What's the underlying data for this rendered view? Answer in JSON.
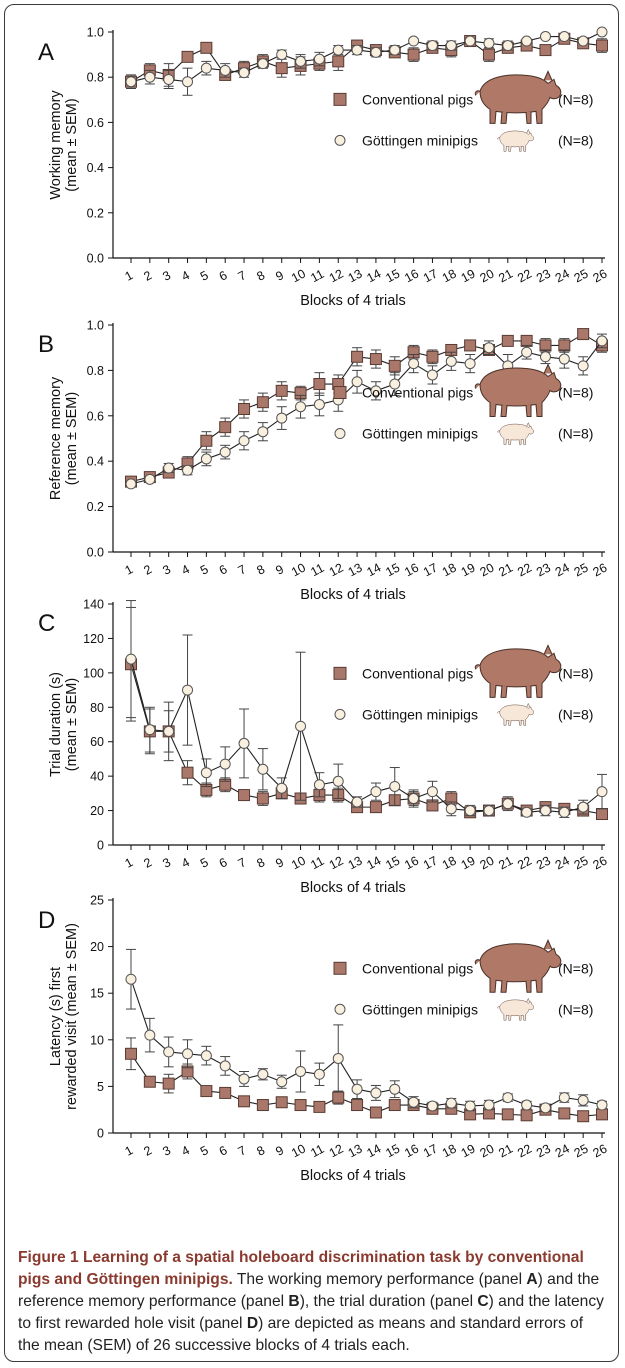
{
  "colors": {
    "conventional": "#a9786b",
    "conventional_stroke": "#5a3b33",
    "minipig": "#faf0e0",
    "minipig_stroke": "#555555",
    "pig_big": "#b07866",
    "pig_small": "#f6e7d8",
    "caption_title": "#8a3a2e"
  },
  "legend": {
    "conventional_label": "Conventional pigs",
    "minipig_label": "Göttingen minipigs",
    "conventional_n": "(N=8)",
    "minipig_n": "(N=8)",
    "icons": [
      "conventional-pig-icon",
      "minipig-icon"
    ]
  },
  "chart_data": [
    {
      "panel": "A",
      "type": "line",
      "ylabel_lines": [
        "Working memory",
        "(mean ± SEM)"
      ],
      "xlabel": "Blocks of 4 trials",
      "x": [
        1,
        2,
        3,
        4,
        5,
        6,
        7,
        8,
        9,
        10,
        11,
        12,
        13,
        14,
        15,
        16,
        17,
        18,
        19,
        20,
        21,
        22,
        23,
        24,
        25,
        26
      ],
      "ylim": [
        0,
        1.0
      ],
      "yticks": [
        0.0,
        0.2,
        0.4,
        0.6,
        0.8,
        1.0
      ],
      "ytick_labels": [
        "0.0",
        "0.2",
        "0.4",
        "0.6",
        "0.8",
        "1.0"
      ],
      "series": [
        {
          "name": "Conventional pigs",
          "values": [
            0.78,
            0.83,
            0.81,
            0.89,
            0.93,
            0.81,
            0.84,
            0.87,
            0.84,
            0.85,
            0.86,
            0.87,
            0.94,
            0.92,
            0.91,
            0.9,
            0.93,
            0.92,
            0.96,
            0.9,
            0.93,
            0.94,
            0.92,
            0.97,
            0.95,
            0.94
          ],
          "sem": [
            0.03,
            0.03,
            0.05,
            0.02,
            0.02,
            0.02,
            0.03,
            0.03,
            0.04,
            0.04,
            0.03,
            0.04,
            0.02,
            0.02,
            0.02,
            0.03,
            0.02,
            0.03,
            0.01,
            0.03,
            0.02,
            0.02,
            0.01,
            0.01,
            0.02,
            0.03
          ]
        },
        {
          "name": "Göttingen minipigs",
          "values": [
            0.78,
            0.8,
            0.79,
            0.78,
            0.84,
            0.83,
            0.82,
            0.86,
            0.9,
            0.87,
            0.88,
            0.92,
            0.92,
            0.91,
            0.92,
            0.96,
            0.94,
            0.94,
            0.96,
            0.95,
            0.94,
            0.96,
            0.98,
            0.98,
            0.96,
            1.0
          ],
          "sem": [
            0.03,
            0.03,
            0.04,
            0.06,
            0.03,
            0.03,
            0.02,
            0.02,
            0.02,
            0.03,
            0.03,
            0.02,
            0.02,
            0.02,
            0.02,
            0.01,
            0.02,
            0.02,
            0.01,
            0.02,
            0.02,
            0.01,
            0.01,
            0.01,
            0.01,
            0.0
          ]
        }
      ]
    },
    {
      "panel": "B",
      "type": "line",
      "ylabel_lines": [
        "Reference memory",
        "(mean ± SEM)"
      ],
      "xlabel": "Blocks of 4 trials",
      "x": [
        1,
        2,
        3,
        4,
        5,
        6,
        7,
        8,
        9,
        10,
        11,
        12,
        13,
        14,
        15,
        16,
        17,
        18,
        19,
        20,
        21,
        22,
        23,
        24,
        25,
        26
      ],
      "ylim": [
        0,
        1.0
      ],
      "yticks": [
        0.0,
        0.2,
        0.4,
        0.6,
        0.8,
        1.0
      ],
      "ytick_labels": [
        "0.0",
        "0.2",
        "0.4",
        "0.6",
        "0.8",
        "1.0"
      ],
      "series": [
        {
          "name": "Conventional pigs",
          "values": [
            0.31,
            0.33,
            0.35,
            0.39,
            0.49,
            0.55,
            0.63,
            0.66,
            0.71,
            0.7,
            0.74,
            0.74,
            0.86,
            0.85,
            0.82,
            0.88,
            0.86,
            0.89,
            0.91,
            0.89,
            0.93,
            0.93,
            0.91,
            0.91,
            0.96,
            0.91
          ],
          "sem": [
            0.01,
            0.01,
            0.02,
            0.03,
            0.04,
            0.04,
            0.04,
            0.04,
            0.04,
            0.03,
            0.05,
            0.04,
            0.04,
            0.04,
            0.04,
            0.03,
            0.03,
            0.02,
            0.02,
            0.02,
            0.02,
            0.02,
            0.03,
            0.03,
            0.02,
            0.03
          ]
        },
        {
          "name": "Göttingen minipigs",
          "values": [
            0.3,
            0.32,
            0.37,
            0.36,
            0.41,
            0.44,
            0.49,
            0.53,
            0.59,
            0.64,
            0.65,
            0.67,
            0.75,
            0.71,
            0.74,
            0.83,
            0.78,
            0.84,
            0.83,
            0.9,
            0.82,
            0.88,
            0.86,
            0.85,
            0.82,
            0.93
          ],
          "sem": [
            0.01,
            0.01,
            0.02,
            0.02,
            0.03,
            0.03,
            0.04,
            0.04,
            0.05,
            0.05,
            0.05,
            0.05,
            0.05,
            0.04,
            0.05,
            0.04,
            0.04,
            0.04,
            0.04,
            0.03,
            0.05,
            0.03,
            0.03,
            0.04,
            0.04,
            0.03
          ]
        }
      ]
    },
    {
      "panel": "C",
      "type": "line",
      "ylabel_lines": [
        "Trial duration (s)",
        "(mean ± SEM)"
      ],
      "xlabel": "Blocks of 4 trials",
      "x": [
        1,
        2,
        3,
        4,
        5,
        6,
        7,
        8,
        9,
        10,
        11,
        12,
        13,
        14,
        15,
        16,
        17,
        18,
        19,
        20,
        21,
        22,
        23,
        24,
        25,
        26
      ],
      "ylim": [
        0,
        140
      ],
      "yticks": [
        0,
        20,
        40,
        60,
        80,
        100,
        120,
        140
      ],
      "ytick_labels": [
        "0",
        "20",
        "40",
        "60",
        "80",
        "100",
        "120",
        "140"
      ],
      "series": [
        {
          "name": "Conventional pigs",
          "values": [
            105,
            66,
            66,
            42,
            32,
            35,
            29,
            27,
            30,
            27,
            29,
            29,
            22,
            22,
            26,
            27,
            23,
            27,
            19,
            20,
            24,
            20,
            22,
            21,
            20,
            18
          ],
          "sem": [
            33,
            13,
            12,
            7,
            4,
            4,
            3,
            4,
            3,
            3,
            4,
            4,
            3,
            3,
            3,
            4,
            3,
            4,
            2,
            2,
            3,
            2,
            2,
            2,
            2,
            2
          ],
          "error_direction": "symmetric"
        },
        {
          "name": "Göttingen minipigs",
          "values": [
            108,
            67,
            66,
            90,
            42,
            47,
            59,
            44,
            33,
            69,
            35,
            37,
            25,
            31,
            34,
            27,
            31,
            21,
            20,
            20,
            24,
            19,
            20,
            19,
            22,
            31
          ],
          "sem": [
            34,
            13,
            17,
            32,
            8,
            10,
            20,
            12,
            6,
            43,
            7,
            10,
            3,
            5,
            11,
            5,
            6,
            4,
            3,
            3,
            4,
            2,
            3,
            3,
            4,
            10
          ],
          "error_direction": "symmetric"
        }
      ]
    },
    {
      "panel": "D",
      "type": "line",
      "ylabel_lines": [
        "Latency (s) first",
        "rewarded visit (mean ± SEM)"
      ],
      "xlabel": "Blocks of 4 trials",
      "x": [
        1,
        2,
        3,
        4,
        5,
        6,
        7,
        8,
        9,
        10,
        11,
        12,
        13,
        14,
        15,
        16,
        17,
        18,
        19,
        20,
        21,
        22,
        23,
        24,
        25,
        26
      ],
      "ylim": [
        0,
        25
      ],
      "yticks": [
        0,
        5,
        10,
        15,
        20,
        25
      ],
      "ytick_labels": [
        "0",
        "5",
        "10",
        "15",
        "20",
        "25"
      ],
      "series": [
        {
          "name": "Conventional pigs",
          "values": [
            8.5,
            5.5,
            5.3,
            6.6,
            4.5,
            4.3,
            3.4,
            3.0,
            3.3,
            3.0,
            2.8,
            3.8,
            3.0,
            2.2,
            3.0,
            3.0,
            2.6,
            2.6,
            2.0,
            2.1,
            2.0,
            1.9,
            2.5,
            2.1,
            1.8,
            2.0
          ],
          "sem": [
            1.7,
            0.5,
            1.0,
            0.8,
            0.4,
            0.5,
            0.4,
            0.4,
            0.4,
            0.3,
            0.3,
            0.7,
            0.4,
            0.3,
            0.3,
            0.4,
            0.3,
            0.3,
            0.3,
            0.3,
            0.2,
            0.2,
            0.3,
            0.2,
            0.2,
            0.2
          ]
        },
        {
          "name": "Göttingen minipigs",
          "values": [
            16.5,
            10.5,
            8.7,
            8.5,
            8.3,
            7.2,
            5.8,
            6.3,
            5.5,
            6.6,
            6.3,
            8.0,
            4.7,
            4.3,
            4.7,
            3.3,
            2.9,
            3.2,
            2.9,
            3.0,
            3.8,
            3.0,
            2.7,
            3.8,
            3.5,
            3.0
          ],
          "sem": [
            3.2,
            1.8,
            1.6,
            1.5,
            1.0,
            1.0,
            0.8,
            0.6,
            0.7,
            2.2,
            1.2,
            3.6,
            1.0,
            0.8,
            0.9,
            0.6,
            0.4,
            0.5,
            0.5,
            0.5,
            0.4,
            0.4,
            0.4,
            0.5,
            0.6,
            0.4
          ]
        }
      ]
    }
  ],
  "caption": {
    "title": "Figure 1 Learning of a spatial holeboard discrimination task by conventional pigs and Göttingen minipigs.",
    "t1": " The working memory performance (panel ",
    "pA": "A",
    "t2": ") and the reference memory performance (panel ",
    "pB": "B",
    "t3": "), the trial duration (panel ",
    "pC": "C",
    "t4": ") and the latency to first rewarded hole visit (panel ",
    "pD": "D",
    "t5": ") are depicted as means and standard errors of the mean (SEM) of 26 successive blocks of 4 trials each."
  }
}
